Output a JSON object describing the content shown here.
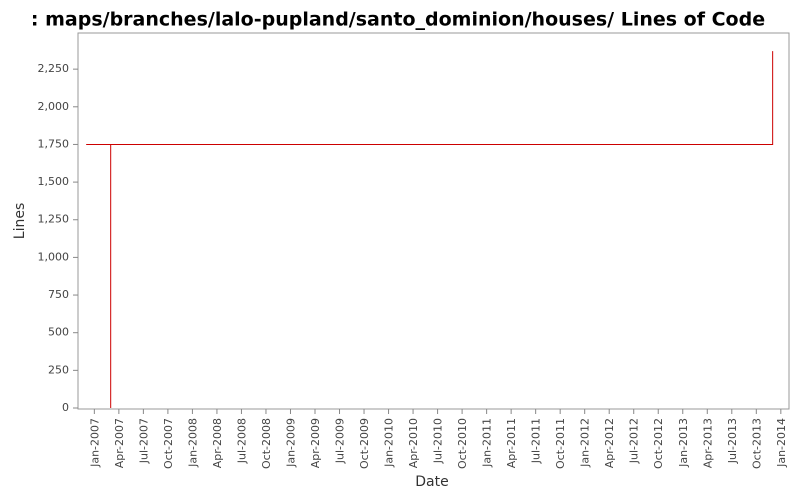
{
  "chart_data": {
    "type": "line",
    "title": ": maps/branches/lalo-pupland/santo_dominion/houses/ Lines of Code",
    "x_label": "Date",
    "y_label": "Lines",
    "x": [
      "2006-12",
      "2007-03",
      "2007-03",
      "2007-03",
      "2013-12",
      "2013-12"
    ],
    "series": [
      {
        "name": "Lines",
        "color": "#cc0000",
        "values": [
          1750,
          1750,
          0,
          1750,
          1750,
          2370
        ]
      }
    ],
    "xlim": [
      "2006-11",
      "2014-02"
    ],
    "xticks": [
      {
        "value": "2007-01",
        "label": "Jan-2007"
      },
      {
        "value": "2007-04",
        "label": "Apr-2007"
      },
      {
        "value": "2007-07",
        "label": "Jul-2007"
      },
      {
        "value": "2007-10",
        "label": "Oct-2007"
      },
      {
        "value": "2008-01",
        "label": "Jan-2008"
      },
      {
        "value": "2008-04",
        "label": "Apr-2008"
      },
      {
        "value": "2008-07",
        "label": "Jul-2008"
      },
      {
        "value": "2008-10",
        "label": "Oct-2008"
      },
      {
        "value": "2009-01",
        "label": "Jan-2009"
      },
      {
        "value": "2009-04",
        "label": "Apr-2009"
      },
      {
        "value": "2009-07",
        "label": "Jul-2009"
      },
      {
        "value": "2009-10",
        "label": "Oct-2009"
      },
      {
        "value": "2010-01",
        "label": "Jan-2010"
      },
      {
        "value": "2010-04",
        "label": "Apr-2010"
      },
      {
        "value": "2010-07",
        "label": "Jul-2010"
      },
      {
        "value": "2010-10",
        "label": "Oct-2010"
      },
      {
        "value": "2011-01",
        "label": "Jan-2011"
      },
      {
        "value": "2011-04",
        "label": "Apr-2011"
      },
      {
        "value": "2011-07",
        "label": "Jul-2011"
      },
      {
        "value": "2011-10",
        "label": "Oct-2011"
      },
      {
        "value": "2012-01",
        "label": "Jan-2012"
      },
      {
        "value": "2012-04",
        "label": "Apr-2012"
      },
      {
        "value": "2012-07",
        "label": "Jul-2012"
      },
      {
        "value": "2012-10",
        "label": "Oct-2012"
      },
      {
        "value": "2013-01",
        "label": "Jan-2013"
      },
      {
        "value": "2013-04",
        "label": "Apr-2013"
      },
      {
        "value": "2013-07",
        "label": "Jul-2013"
      },
      {
        "value": "2013-10",
        "label": "Oct-2013"
      },
      {
        "value": "2014-01",
        "label": "Jan-2014"
      }
    ],
    "ylim": [
      0,
      2490
    ],
    "yticks": [
      0,
      250,
      500,
      750,
      {
        "value": 1000,
        "label": "1,000"
      },
      {
        "value": 1250,
        "label": "1,250"
      },
      {
        "value": 1500,
        "label": "1,500"
      },
      {
        "value": 1750,
        "label": "1,750"
      },
      {
        "value": 2000,
        "label": "2,000"
      },
      {
        "value": 2250,
        "label": "2,250"
      }
    ],
    "grid": false
  }
}
